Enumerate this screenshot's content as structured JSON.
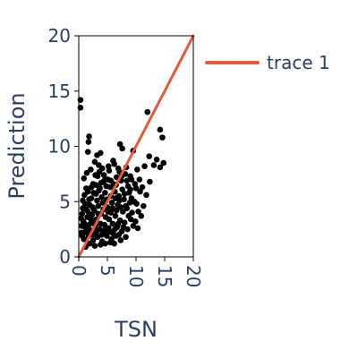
{
  "chart_data": {
    "type": "scatter",
    "xlabel": "TSN",
    "ylabel": "Prediction",
    "xlim": [
      0,
      20
    ],
    "ylim": [
      0,
      20
    ],
    "x_ticks": [
      "0",
      "5",
      "10",
      "15",
      "20"
    ],
    "y_ticks": [
      "0",
      "5",
      "10",
      "15",
      "20"
    ],
    "legend": {
      "position": "right",
      "entries": [
        "trace 1"
      ]
    },
    "colors": {
      "points": "#000000",
      "line": "#e45a3c",
      "text": "#2a3f5f",
      "axis": "#000000"
    },
    "series": [
      {
        "type": "scatter",
        "points": [
          [
            0.3,
            14.2
          ],
          [
            0.3,
            13.5
          ],
          [
            12.0,
            13.1
          ],
          [
            14.2,
            11.5
          ],
          [
            14.6,
            10.8
          ],
          [
            1.8,
            10.9
          ],
          [
            1.7,
            10.4
          ],
          [
            1.6,
            9.5
          ],
          [
            7.2,
            10.2
          ],
          [
            7.6,
            9.8
          ],
          [
            9.5,
            9.6
          ],
          [
            3.8,
            9.4
          ],
          [
            3.2,
            9.2
          ],
          [
            12.3,
            9.1
          ],
          [
            13.6,
            8.8
          ],
          [
            14.8,
            8.5
          ],
          [
            13.1,
            8.3
          ],
          [
            14.2,
            8.1
          ],
          [
            11.5,
            8.2
          ],
          [
            10.2,
            7.9
          ],
          [
            6.0,
            8.7
          ],
          [
            6.2,
            8.4
          ],
          [
            2.8,
            8.6
          ],
          [
            3.5,
            8.3
          ],
          [
            4.1,
            8.0
          ],
          [
            5.3,
            7.8
          ],
          [
            7.1,
            7.7
          ],
          [
            8.1,
            7.5
          ],
          [
            9.0,
            7.3
          ],
          [
            10.6,
            7.0
          ],
          [
            9.8,
            6.6
          ],
          [
            8.6,
            6.4
          ],
          [
            7.4,
            6.9
          ],
          [
            6.6,
            7.2
          ],
          [
            5.1,
            7.0
          ],
          [
            4.3,
            6.8
          ],
          [
            3.3,
            7.3
          ],
          [
            2.5,
            6.6
          ],
          [
            1.3,
            6.2
          ],
          [
            1.0,
            5.6
          ],
          [
            0.7,
            5.1
          ],
          [
            1.6,
            5.9
          ],
          [
            2.2,
            5.3
          ],
          [
            3.0,
            5.7
          ],
          [
            3.7,
            6.2
          ],
          [
            4.6,
            5.8
          ],
          [
            5.5,
            6.3
          ],
          [
            6.3,
            5.9
          ],
          [
            7.0,
            5.5
          ],
          [
            7.9,
            5.2
          ],
          [
            8.8,
            5.8
          ],
          [
            9.7,
            5.0
          ],
          [
            10.1,
            4.8
          ],
          [
            8.4,
            4.4
          ],
          [
            7.7,
            4.1
          ],
          [
            6.8,
            4.7
          ],
          [
            5.8,
            4.9
          ],
          [
            5.0,
            4.5
          ],
          [
            4.2,
            4.9
          ],
          [
            3.4,
            4.6
          ],
          [
            2.7,
            4.2
          ],
          [
            1.9,
            4.7
          ],
          [
            1.3,
            4.3
          ],
          [
            0.6,
            3.9
          ],
          [
            0.8,
            3.2
          ],
          [
            1.5,
            3.6
          ],
          [
            2.3,
            3.8
          ],
          [
            3.1,
            3.4
          ],
          [
            3.9,
            3.9
          ],
          [
            4.7,
            3.6
          ],
          [
            5.6,
            4.0
          ],
          [
            6.4,
            3.7
          ],
          [
            7.2,
            3.3
          ],
          [
            8.0,
            3.1
          ],
          [
            9.1,
            3.4
          ],
          [
            10.9,
            3.7
          ],
          [
            9.5,
            2.8
          ],
          [
            8.5,
            2.5
          ],
          [
            7.5,
            2.3
          ],
          [
            6.7,
            2.7
          ],
          [
            5.9,
            3.0
          ],
          [
            5.2,
            2.6
          ],
          [
            4.5,
            2.9
          ],
          [
            3.7,
            2.5
          ],
          [
            2.9,
            2.8
          ],
          [
            2.0,
            2.4
          ],
          [
            1.1,
            2.7
          ],
          [
            0.5,
            2.2
          ],
          [
            0.9,
            1.6
          ],
          [
            1.7,
            1.9
          ],
          [
            2.5,
            1.5
          ],
          [
            3.3,
            1.8
          ],
          [
            4.1,
            1.4
          ],
          [
            4.9,
            1.9
          ],
          [
            5.7,
            1.6
          ],
          [
            6.5,
            1.9
          ],
          [
            7.3,
            1.5
          ],
          [
            8.2,
            1.8
          ],
          [
            3.8,
            1.1
          ],
          [
            2.8,
            1.0
          ],
          [
            4.6,
            1.2
          ],
          [
            5.5,
            1.3
          ],
          [
            1.9,
            1.2
          ],
          [
            1.2,
            0.9
          ],
          [
            6.2,
            1.2
          ],
          [
            0.9,
            7.1
          ],
          [
            1.4,
            7.6
          ],
          [
            2.1,
            7.9
          ],
          [
            2.9,
            7.4
          ],
          [
            3.6,
            7.7
          ],
          [
            4.4,
            7.4
          ],
          [
            5.2,
            8.2
          ],
          [
            6.9,
            8.0
          ],
          [
            8.3,
            8.1
          ],
          [
            11.1,
            6.3
          ],
          [
            12.4,
            6.8
          ],
          [
            11.8,
            5.6
          ],
          [
            10.7,
            5.9
          ],
          [
            11.3,
            4.6
          ],
          [
            10.4,
            4.1
          ],
          [
            9.3,
            4.0
          ],
          [
            8.9,
            4.9
          ],
          [
            7.6,
            6.1
          ],
          [
            6.1,
            6.6
          ],
          [
            4.8,
            6.4
          ],
          [
            3.5,
            6.0
          ],
          [
            2.6,
            5.8
          ],
          [
            1.8,
            5.2
          ],
          [
            1.1,
            4.8
          ],
          [
            0.7,
            4.4
          ],
          [
            0.4,
            3.5
          ],
          [
            0.5,
            2.8
          ],
          [
            0.6,
            1.9
          ],
          [
            1.4,
            2.2
          ],
          [
            2.2,
            3.1
          ],
          [
            3.0,
            2.2
          ],
          [
            3.8,
            3.0
          ],
          [
            4.4,
            2.2
          ],
          [
            5.3,
            3.4
          ],
          [
            6.0,
            2.1
          ],
          [
            6.9,
            3.0
          ],
          [
            7.8,
            2.7
          ],
          [
            8.7,
            3.7
          ],
          [
            9.9,
            3.2
          ],
          [
            10.3,
            2.6
          ],
          [
            9.0,
            6.1
          ],
          [
            8.0,
            5.7
          ],
          [
            7.1,
            5.1
          ],
          [
            6.4,
            5.3
          ],
          [
            5.6,
            5.5
          ],
          [
            4.9,
            5.2
          ],
          [
            4.0,
            5.4
          ],
          [
            3.2,
            5.1
          ],
          [
            2.4,
            4.5
          ],
          [
            1.6,
            4.1
          ],
          [
            2.0,
            3.5
          ],
          [
            2.7,
            3.3
          ],
          [
            3.4,
            3.9
          ],
          [
            4.3,
            4.3
          ],
          [
            5.1,
            4.1
          ],
          [
            5.9,
            4.4
          ],
          [
            6.6,
            4.2
          ],
          [
            7.3,
            4.5
          ],
          [
            8.2,
            4.6
          ],
          [
            9.2,
            5.3
          ],
          [
            1.0,
            3.0
          ],
          [
            1.3,
            2.5
          ],
          [
            1.8,
            2.9
          ],
          [
            2.5,
            2.0
          ],
          [
            3.2,
            2.4
          ],
          [
            4.0,
            2.0
          ],
          [
            4.7,
            2.5
          ],
          [
            5.4,
            2.3
          ],
          [
            6.3,
            2.5
          ],
          [
            7.0,
            2.0
          ],
          [
            2.2,
            6.3
          ],
          [
            3.0,
            6.5
          ],
          [
            3.9,
            6.7
          ],
          [
            4.6,
            7.0
          ],
          [
            5.6,
            6.9
          ],
          [
            6.5,
            6.5
          ],
          [
            7.5,
            7.3
          ],
          [
            8.4,
            6.9
          ],
          [
            9.2,
            7.0
          ],
          [
            10.0,
            6.2
          ]
        ]
      },
      {
        "name": "trace 1",
        "type": "line",
        "points": [
          [
            0,
            0
          ],
          [
            20,
            20
          ]
        ]
      }
    ]
  }
}
